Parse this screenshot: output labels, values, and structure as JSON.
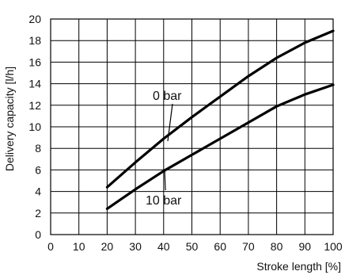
{
  "chart_data": {
    "type": "line",
    "title": "",
    "xlabel": "Stroke length [%]",
    "ylabel": "Delivery capacity [l/h]",
    "xlim": [
      0,
      100
    ],
    "ylim": [
      0,
      20
    ],
    "x_ticks": [
      0,
      10,
      20,
      30,
      40,
      50,
      60,
      70,
      80,
      90,
      100
    ],
    "y_ticks": [
      0,
      2,
      4,
      6,
      8,
      10,
      12,
      14,
      16,
      18,
      20
    ],
    "grid": true,
    "legend": "none",
    "series": [
      {
        "name": "0 bar",
        "color": "#000000",
        "x": [
          20,
          30,
          40,
          50,
          60,
          70,
          80,
          90,
          100
        ],
        "y": [
          4.4,
          6.7,
          8.9,
          10.9,
          12.8,
          14.7,
          16.4,
          17.8,
          18.9
        ]
      },
      {
        "name": "10 bar",
        "color": "#000000",
        "x": [
          20,
          30,
          40,
          50,
          60,
          70,
          80,
          90,
          100
        ],
        "y": [
          2.4,
          4.2,
          5.9,
          7.4,
          8.9,
          10.4,
          11.9,
          13.0,
          13.9
        ]
      }
    ]
  }
}
